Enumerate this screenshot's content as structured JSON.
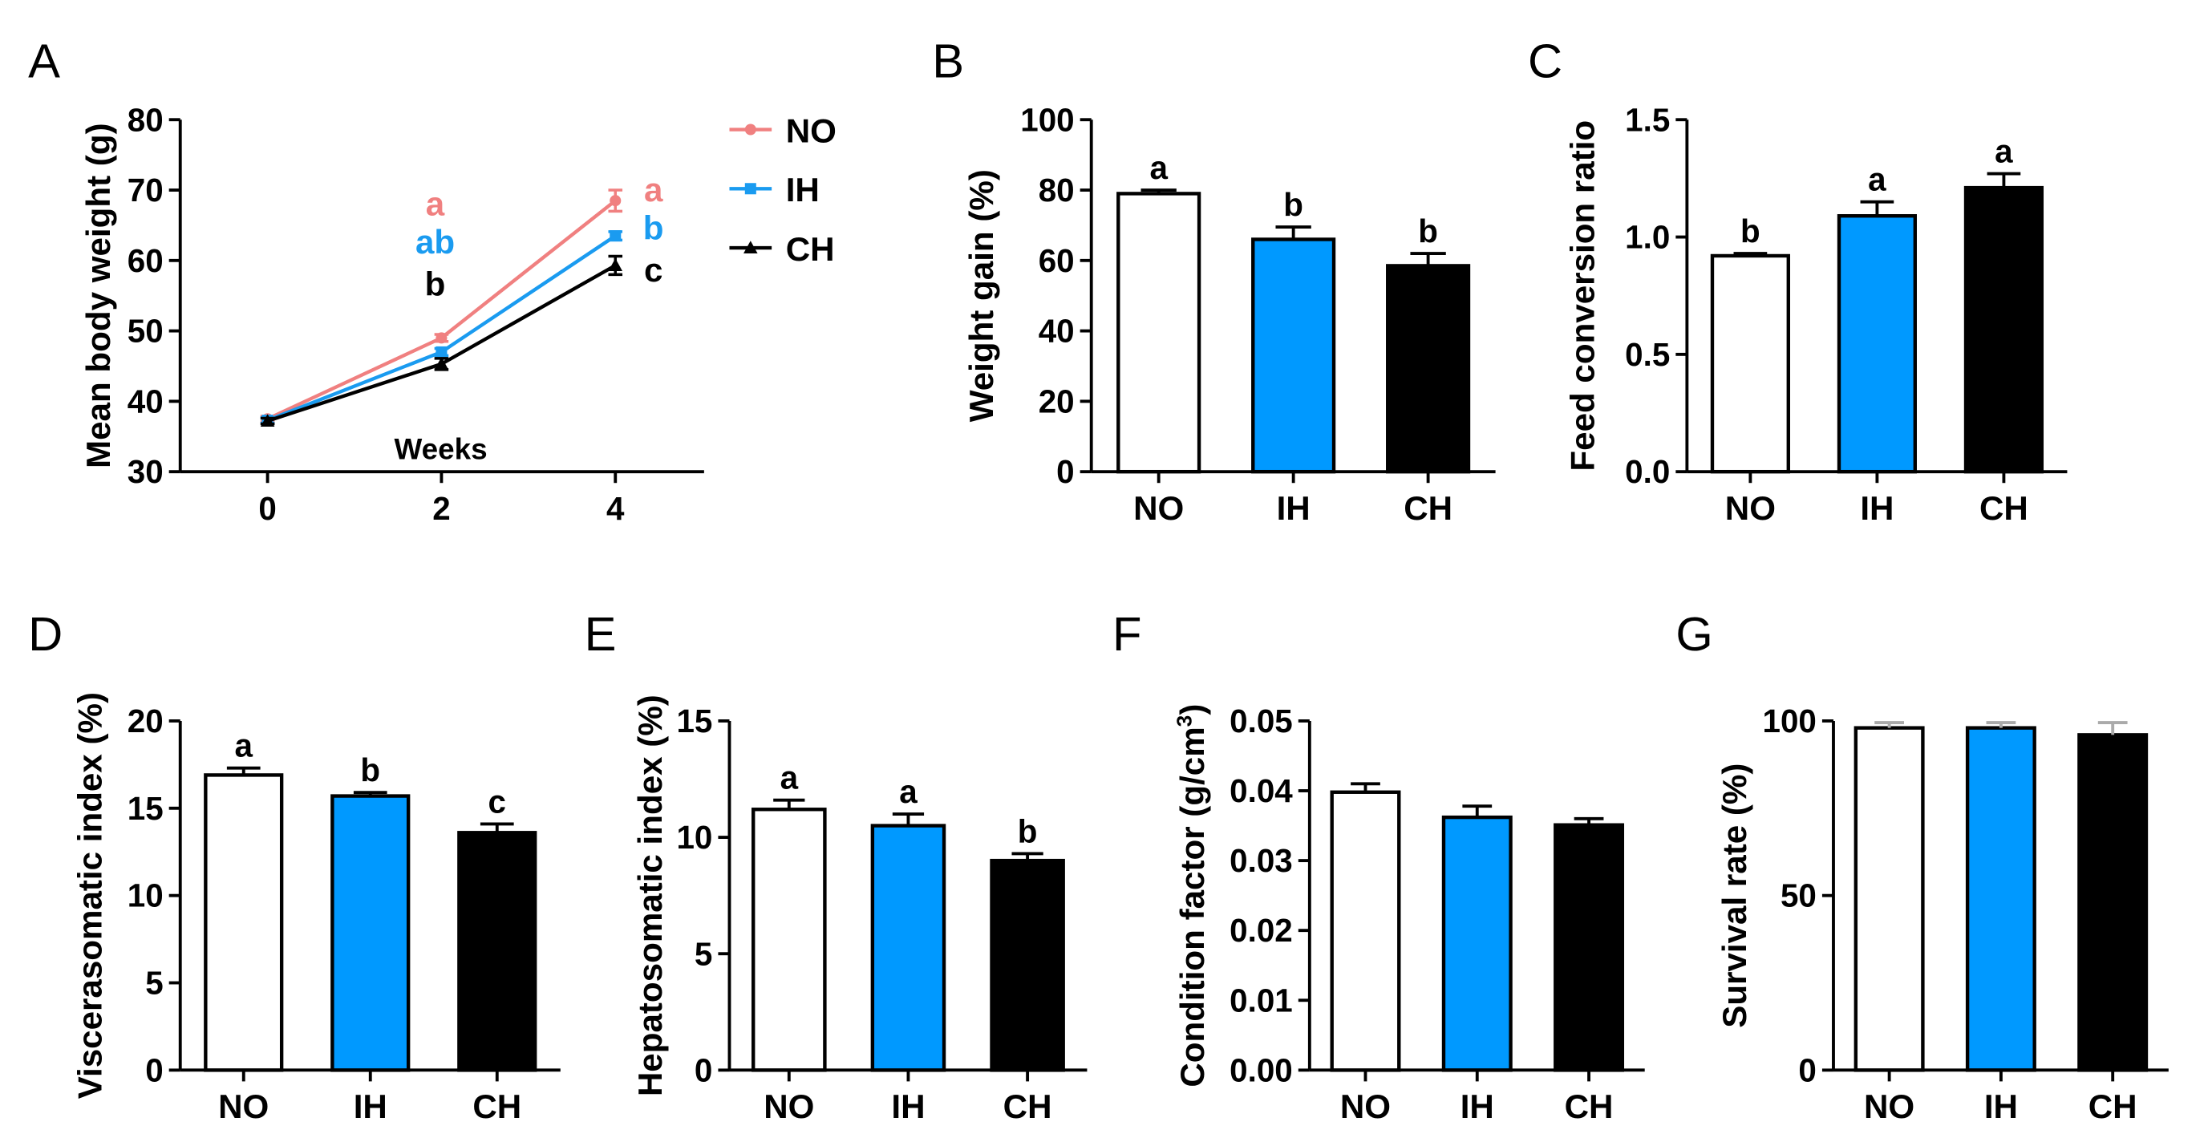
{
  "colors": {
    "NO": "#ffffff",
    "IH": "#0099ff",
    "CH": "#000000",
    "NO_line": "#f08080",
    "IH_line": "#1a9bf0",
    "CH_line": "#000000",
    "error": "#000000",
    "error_light": "#aaaaaa"
  },
  "chart_data": [
    {
      "panel": "A",
      "type": "line",
      "ylabel": "Mean body weight (g)",
      "annotation": "Weeks",
      "x": [
        0,
        2,
        4
      ],
      "xticks": [
        "0",
        "2",
        "4"
      ],
      "ylim": [
        30,
        80
      ],
      "yticks": [
        "30",
        "40",
        "50",
        "60",
        "70",
        "80"
      ],
      "legend_position": "right",
      "series": [
        {
          "name": "NO",
          "values": [
            37.5,
            49.0,
            68.5
          ],
          "errors": [
            0.4,
            0.5,
            1.5
          ],
          "color_key": "NO_line",
          "marker": "circle"
        },
        {
          "name": "IH",
          "values": [
            37.3,
            47.0,
            63.5
          ],
          "errors": [
            0.4,
            0.5,
            0.6
          ],
          "color_key": "IH_line",
          "marker": "square"
        },
        {
          "name": "CH",
          "values": [
            37.2,
            45.3,
            59.3
          ],
          "errors": [
            0.4,
            0.8,
            1.3
          ],
          "color_key": "CH_line",
          "marker": "triangle"
        }
      ],
      "letters_week2": [
        {
          "text": "a",
          "color_key": "NO_line"
        },
        {
          "text": "ab",
          "color_key": "IH_line"
        },
        {
          "text": "b",
          "color_key": "CH_line"
        }
      ],
      "letters_week4": [
        {
          "text": "a",
          "color_key": "NO_line"
        },
        {
          "text": "b",
          "color_key": "IH_line"
        },
        {
          "text": "c",
          "color_key": "CH_line"
        }
      ]
    },
    {
      "panel": "B",
      "type": "bar",
      "ylabel": "Weight gain (%)",
      "categories": [
        "NO",
        "IH",
        "CH"
      ],
      "values": [
        79.0,
        66.0,
        58.5
      ],
      "errors": [
        1.0,
        3.5,
        3.5
      ],
      "letters": [
        "a",
        "b",
        "b"
      ],
      "ylim": [
        0,
        100
      ],
      "yticks": [
        "0",
        "20",
        "40",
        "60",
        "80",
        "100"
      ]
    },
    {
      "panel": "C",
      "type": "bar",
      "ylabel": "Feed conversion ratio",
      "categories": [
        "NO",
        "IH",
        "CH"
      ],
      "values": [
        0.92,
        1.09,
        1.21
      ],
      "errors": [
        0.01,
        0.06,
        0.06
      ],
      "letters": [
        "b",
        "a",
        "a"
      ],
      "ylim": [
        0,
        1.5
      ],
      "yticks": [
        "0.0",
        "0.5",
        "1.0",
        "1.5"
      ]
    },
    {
      "panel": "D",
      "type": "bar",
      "ylabel": "Viscerasomatic index (%)",
      "categories": [
        "NO",
        "IH",
        "CH"
      ],
      "values": [
        16.9,
        15.7,
        13.6
      ],
      "errors": [
        0.4,
        0.2,
        0.5
      ],
      "letters": [
        "a",
        "b",
        "c"
      ],
      "ylim": [
        0,
        20
      ],
      "yticks": [
        "0",
        "5",
        "10",
        "15",
        "20"
      ]
    },
    {
      "panel": "E",
      "type": "bar",
      "ylabel": "Hepatosomatic index (%)",
      "categories": [
        "NO",
        "IH",
        "CH"
      ],
      "values": [
        11.2,
        10.5,
        9.0
      ],
      "errors": [
        0.4,
        0.5,
        0.3
      ],
      "letters": [
        "a",
        "a",
        "b"
      ],
      "ylim": [
        0,
        15
      ],
      "yticks": [
        "0",
        "5",
        "10",
        "15"
      ]
    },
    {
      "panel": "F",
      "type": "bar",
      "ylabel": "Condition factor (g/cm",
      "ylabel_sup": "3",
      "ylabel_end": ")",
      "categories": [
        "NO",
        "IH",
        "CH"
      ],
      "values": [
        0.0398,
        0.0362,
        0.0351
      ],
      "errors": [
        0.0012,
        0.0016,
        0.0009
      ],
      "letters": [
        "",
        "",
        ""
      ],
      "ylim": [
        0,
        0.05
      ],
      "yticks": [
        "0.00",
        "0.01",
        "0.02",
        "0.03",
        "0.04",
        "0.05"
      ]
    },
    {
      "panel": "G",
      "type": "bar",
      "ylabel": "Survival rate (%)",
      "categories": [
        "NO",
        "IH",
        "CH"
      ],
      "values": [
        98.0,
        98.0,
        96.0
      ],
      "errors": [
        1.5,
        1.5,
        3.5
      ],
      "letters": [
        "",
        "",
        ""
      ],
      "ylim": [
        0,
        100
      ],
      "yticks": [
        "0",
        "50",
        "100"
      ],
      "error_color_key": "error_light"
    }
  ]
}
